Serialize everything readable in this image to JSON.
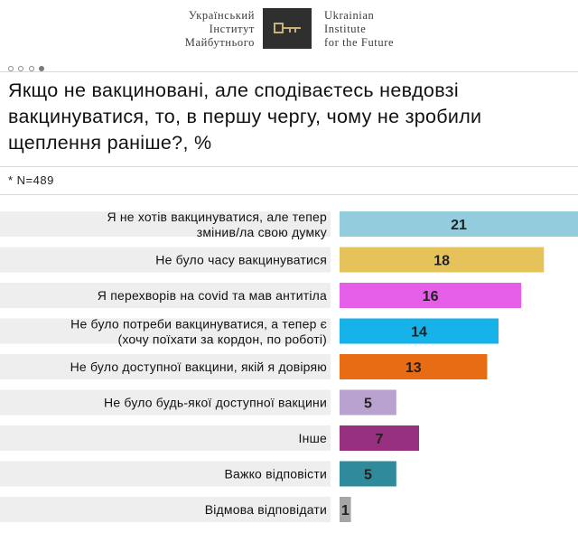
{
  "header": {
    "org_ua": [
      "Український",
      "Інститут",
      "Майбутнього"
    ],
    "org_en": [
      "Ukrainian",
      "Institute",
      "for the Future"
    ]
  },
  "title": "Якщо не вакциновані, але сподіваєтесь невдовзі вакцинуватися, то, в першу чергу,  чому не зробили щеплення раніше?, %",
  "note": "* N=489",
  "chart_data": {
    "type": "bar",
    "orientation": "horizontal",
    "categories": [
      [
        "Я не хотів вакцинуватися, але тепер",
        "змінив/ла свою думку"
      ],
      [
        "Не було часу вакцинуватися"
      ],
      [
        "Я перехворів на covid та мав антитіла"
      ],
      [
        "Не було потреби вакцинуватися, а тепер є",
        "(хочу поїхати за кордон, по роботі)"
      ],
      [
        "Не було доступної вакцини, якій я довіряю"
      ],
      [
        "Не було будь-якої доступної вакцини"
      ],
      [
        "Інше"
      ],
      [
        "Важко відповісти"
      ],
      [
        "Відмова відповідати"
      ]
    ],
    "values": [
      21,
      18,
      16,
      14,
      13,
      5,
      7,
      5,
      1
    ],
    "colors": [
      "#93cddd",
      "#e6c35a",
      "#e45ee8",
      "#16b2ea",
      "#e86c14",
      "#b9a2cf",
      "#97307f",
      "#2f8a9c",
      "#a6a6a6"
    ],
    "label_colors": [
      "#222222",
      "#222222",
      "#222222",
      "#222222",
      "#222222",
      "#333333",
      "#222222",
      "#ffffff",
      "#222222"
    ],
    "xlim": [
      0,
      21
    ],
    "grid": false,
    "legend": "none"
  }
}
